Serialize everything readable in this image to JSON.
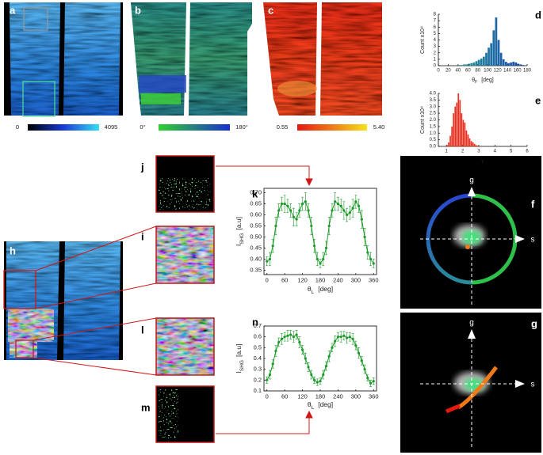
{
  "labels": {
    "a": "a",
    "b": "b",
    "c": "c",
    "d": "d",
    "e": "e",
    "f": "f",
    "g": "g",
    "h": "h",
    "i": "i",
    "j": "j",
    "k": "k",
    "l": "l",
    "m": "m",
    "n": "n"
  },
  "colorbars": [
    {
      "min": "0",
      "max": "4095"
    },
    {
      "min": "0°",
      "max": "180°"
    },
    {
      "min": "0.55",
      "max": "5.40"
    }
  ],
  "phasor_f": {
    "g_axis": "g",
    "s_axis": "s"
  },
  "phasor_g": {
    "g_axis": "g",
    "s_axis": "s"
  },
  "chart_data": [
    {
      "type": "histogram",
      "ylabel": "Count  x10⁴",
      "xlabel": "θ",
      "xlabel_sub": "F",
      "xlabel_unit": "[deg]",
      "bins": [
        40,
        45,
        50,
        55,
        60,
        65,
        70,
        75,
        80,
        85,
        90,
        95,
        100,
        105,
        110,
        115,
        120,
        125,
        130,
        135,
        140,
        145,
        150,
        155,
        160,
        165,
        170,
        175,
        180
      ],
      "counts": [
        0.1,
        0.1,
        0.2,
        0.2,
        0.3,
        0.4,
        0.5,
        0.7,
        0.9,
        1.1,
        1.4,
        2.0,
        2.8,
        3.5,
        5.5,
        7.5,
        4.0,
        2.0,
        1.0,
        0.6,
        0.4,
        0.5,
        0.6,
        0.5,
        0.3,
        0.2,
        0.1,
        0.05
      ],
      "colors": [
        "#22b78a",
        "#1a3cb4"
      ],
      "xlim": [
        0,
        180
      ],
      "xticks": [
        0,
        20,
        40,
        60,
        80,
        100,
        120,
        140,
        160,
        180
      ],
      "ylim": [
        0,
        8
      ],
      "yticks": [
        0,
        1,
        2,
        3,
        4,
        5,
        6,
        7,
        8
      ]
    },
    {
      "type": "histogram",
      "ylabel": "Count  x10⁴",
      "xlabel": "γ",
      "bins": [
        1.0,
        1.1,
        1.2,
        1.3,
        1.4,
        1.5,
        1.6,
        1.7,
        1.8,
        1.9,
        2.0,
        2.1,
        2.2,
        2.3,
        2.4,
        2.5,
        2.6,
        2.7,
        2.8,
        2.9,
        3.0
      ],
      "counts": [
        0.1,
        0.3,
        0.8,
        1.5,
        2.5,
        3.0,
        3.3,
        4.0,
        3.5,
        2.5,
        2.0,
        1.8,
        1.2,
        0.9,
        0.6,
        0.4,
        0.3,
        0.2,
        0.1,
        0.05
      ],
      "colors": [
        "#ee2a1a",
        "#ee2a1a"
      ],
      "xlim": [
        0.5,
        6
      ],
      "xticks": [
        1,
        2,
        3,
        4,
        5,
        6
      ],
      "ylim": [
        0,
        4
      ],
      "yticks": [
        {
          "value": 0,
          "label": "0.0"
        },
        0.5,
        {
          "value": 1,
          "label": "1.0"
        },
        1.5,
        {
          "value": 2,
          "label": "2.0"
        },
        2.5,
        {
          "value": 3,
          "label": "3.0"
        },
        3.5,
        {
          "value": 4,
          "label": "4.0"
        }
      ]
    },
    {
      "type": "line",
      "ylabel": "I",
      "ylabel_sub": "SHG",
      "ylabel_unit": "[a.u]",
      "xlabel": "θ",
      "xlabel_sub": "L",
      "xlabel_unit": "[deg]",
      "color": "#1c9a2a",
      "x": [
        0,
        10,
        20,
        30,
        40,
        50,
        60,
        70,
        80,
        90,
        100,
        110,
        120,
        130,
        140,
        150,
        160,
        170,
        180,
        190,
        200,
        210,
        220,
        230,
        240,
        250,
        260,
        270,
        280,
        290,
        300,
        310,
        320,
        330,
        340,
        350,
        360
      ],
      "values": [
        0.39,
        0.4,
        0.46,
        0.55,
        0.62,
        0.65,
        0.65,
        0.64,
        0.62,
        0.59,
        0.58,
        0.62,
        0.65,
        0.66,
        0.62,
        0.55,
        0.46,
        0.4,
        0.38,
        0.4,
        0.45,
        0.55,
        0.62,
        0.66,
        0.65,
        0.64,
        0.62,
        0.6,
        0.61,
        0.63,
        0.66,
        0.64,
        0.58,
        0.5,
        0.43,
        0.4,
        0.38
      ],
      "errors": [
        0.02,
        0.03,
        0.03,
        0.04,
        0.03,
        0.03,
        0.04,
        0.03,
        0.03,
        0.04,
        0.03,
        0.03,
        0.03,
        0.04,
        0.03,
        0.04,
        0.03,
        0.03,
        0.02,
        0.03,
        0.03,
        0.04,
        0.03,
        0.04,
        0.03,
        0.03,
        0.04,
        0.03,
        0.03,
        0.04,
        0.03,
        0.03,
        0.04,
        0.04,
        0.03,
        0.03,
        0.02
      ],
      "xlim": [
        -10,
        370
      ],
      "xticks": [
        0,
        60,
        120,
        180,
        240,
        300,
        360
      ],
      "ylim": [
        0.33,
        0.72
      ],
      "yticks": [
        0.35,
        {
          "value": 0.4,
          "label": "0.40"
        },
        0.45,
        {
          "value": 0.5,
          "label": "0.50"
        },
        0.55,
        {
          "value": 0.6,
          "label": "0.60"
        },
        0.65,
        {
          "value": 0.7,
          "label": "0.70"
        }
      ]
    },
    {
      "type": "line",
      "ylabel": "I",
      "ylabel_sub": "SHG",
      "ylabel_unit": "[a.u]",
      "xlabel": "θ",
      "xlabel_sub": "L",
      "xlabel_unit": "[deg]",
      "color": "#1c9a2a",
      "x": [
        0,
        10,
        20,
        30,
        40,
        50,
        60,
        70,
        80,
        90,
        100,
        110,
        120,
        130,
        140,
        150,
        160,
        170,
        180,
        190,
        200,
        210,
        220,
        230,
        240,
        250,
        260,
        270,
        280,
        290,
        300,
        310,
        320,
        330,
        340,
        350,
        360
      ],
      "values": [
        0.2,
        0.25,
        0.35,
        0.47,
        0.55,
        0.58,
        0.6,
        0.61,
        0.62,
        0.6,
        0.62,
        0.55,
        0.48,
        0.4,
        0.32,
        0.25,
        0.2,
        0.18,
        0.19,
        0.25,
        0.33,
        0.42,
        0.5,
        0.56,
        0.6,
        0.6,
        0.61,
        0.59,
        0.6,
        0.58,
        0.52,
        0.45,
        0.38,
        0.3,
        0.22,
        0.17,
        0.19
      ],
      "errors": [
        0.03,
        0.04,
        0.04,
        0.05,
        0.04,
        0.05,
        0.04,
        0.05,
        0.04,
        0.05,
        0.04,
        0.05,
        0.04,
        0.05,
        0.04,
        0.04,
        0.03,
        0.03,
        0.03,
        0.04,
        0.04,
        0.05,
        0.04,
        0.05,
        0.04,
        0.05,
        0.04,
        0.05,
        0.04,
        0.05,
        0.04,
        0.05,
        0.04,
        0.04,
        0.03,
        0.03,
        0.03
      ],
      "xlim": [
        -10,
        370
      ],
      "xticks": [
        0,
        60,
        120,
        180,
        240,
        300,
        360
      ],
      "ylim": [
        0.1,
        0.7
      ],
      "yticks": [
        0.1,
        0.2,
        0.3,
        0.4,
        0.5,
        0.6,
        0.7
      ]
    }
  ]
}
